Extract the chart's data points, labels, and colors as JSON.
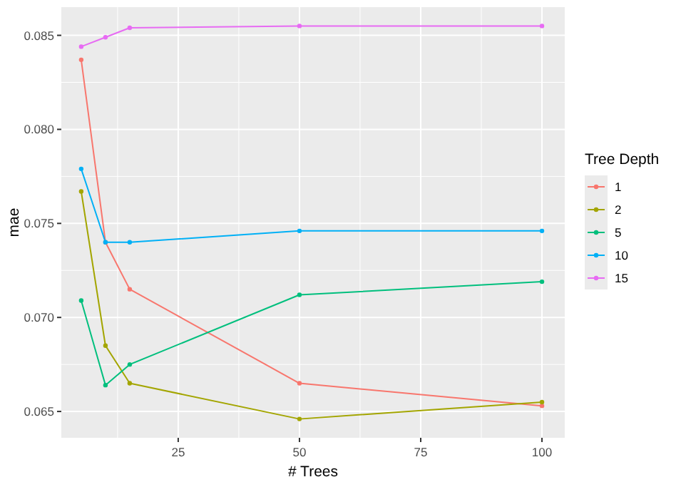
{
  "chart_data": {
    "type": "line",
    "xlabel": "# Trees",
    "ylabel": "mae",
    "legend_title": "Tree Depth",
    "x": [
      5,
      10,
      15,
      50,
      100
    ],
    "series": [
      {
        "name": "1",
        "color": "#f8766d",
        "values": [
          0.0837,
          0.074,
          0.0715,
          0.0665,
          0.0653
        ]
      },
      {
        "name": "2",
        "color": "#a3a500",
        "values": [
          0.0767,
          0.0685,
          0.0665,
          0.0646,
          0.0655
        ]
      },
      {
        "name": "5",
        "color": "#00bf7d",
        "values": [
          0.0709,
          0.0664,
          0.0675,
          0.0712,
          0.0719
        ]
      },
      {
        "name": "10",
        "color": "#00b0f6",
        "values": [
          0.0779,
          0.074,
          0.074,
          0.0746,
          0.0746
        ]
      },
      {
        "name": "15",
        "color": "#e76bf3",
        "values": [
          0.0844,
          0.0849,
          0.0854,
          0.0855,
          0.0855
        ]
      }
    ],
    "xlim": [
      0.9,
      104.7
    ],
    "xticks": [
      25,
      50,
      75,
      100
    ],
    "ylim": [
      0.0636,
      0.0865
    ],
    "yticks": [
      {
        "value": 0.065,
        "label": "0.065"
      },
      {
        "value": 0.07,
        "label": "0.070"
      },
      {
        "value": 0.075,
        "label": "0.075"
      },
      {
        "value": 0.08,
        "label": "0.080"
      },
      {
        "value": 0.085,
        "label": "0.085"
      }
    ],
    "grid": true,
    "legend": "right",
    "marker": "circle",
    "line_style": "solid"
  }
}
